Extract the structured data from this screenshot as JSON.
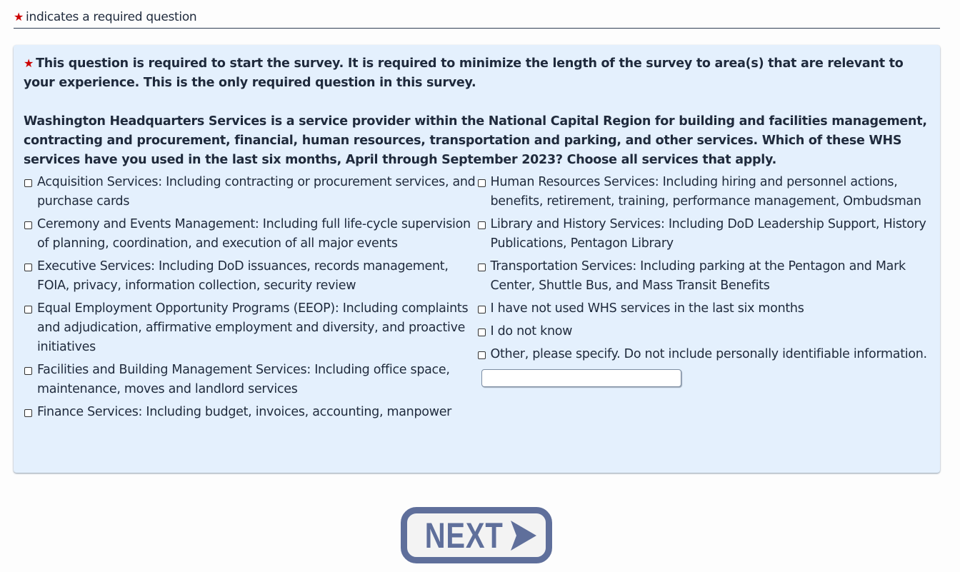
{
  "legend": {
    "star_icon": "red-star",
    "text": "indicates a required question"
  },
  "question": {
    "required_note": "This question is required to start the survey. It is required to minimize the length of the survey to area(s) that are relevant to your experience. This is the only required question in this survey.",
    "prompt": "Washington Headquarters Services is a service provider within the National Capital Region for building and facilities management, contracting and procurement, financial, human resources, transportation and parking, and other services. Which of these WHS services have you used in the last six months, April through September 2023? Choose all services that apply.",
    "left_options": [
      {
        "label": "Acquisition Services: Including contracting or procurement services, and purchase cards",
        "checked": false
      },
      {
        "label": "Ceremony and Events Management: Including full life-cycle supervision of planning, coordination, and execution of all major events",
        "checked": false
      },
      {
        "label": "Executive Services: Including DoD issuances, records management, FOIA, privacy, information collection, security review",
        "checked": false
      },
      {
        "label": "Equal Employment Opportunity Programs (EEOP): Including complaints and adjudication, affirmative employment and diversity, and proactive initiatives",
        "checked": false
      },
      {
        "label": "Facilities and Building Management Services: Including office space, maintenance, moves and landlord services",
        "checked": false
      },
      {
        "label": "Finance Services: Including budget, invoices, accounting, manpower",
        "checked": false
      }
    ],
    "right_options": [
      {
        "label": "Human Resources Services: Including hiring and personnel actions, benefits, retirement, training, performance management, Ombudsman",
        "checked": false
      },
      {
        "label": "Library and History Services: Including DoD Leadership Support, History Publications, Pentagon Library",
        "checked": false
      },
      {
        "label": "Transportation Services: Including parking at the Pentagon and Mark Center, Shuttle Bus, and Mass Transit Benefits",
        "checked": false
      },
      {
        "label": "I have not used WHS services in the last six months",
        "checked": false
      },
      {
        "label": "I do not know",
        "checked": false
      },
      {
        "label": "Other, please specify. Do not include personally identifiable information.",
        "checked": false
      }
    ],
    "other_value": ""
  },
  "next_button": {
    "label": "NEXT",
    "icon": "arrow-right"
  },
  "colors": {
    "star": "#cc0000",
    "panel": "#e4f0fd",
    "next": "#5f6f9b"
  }
}
